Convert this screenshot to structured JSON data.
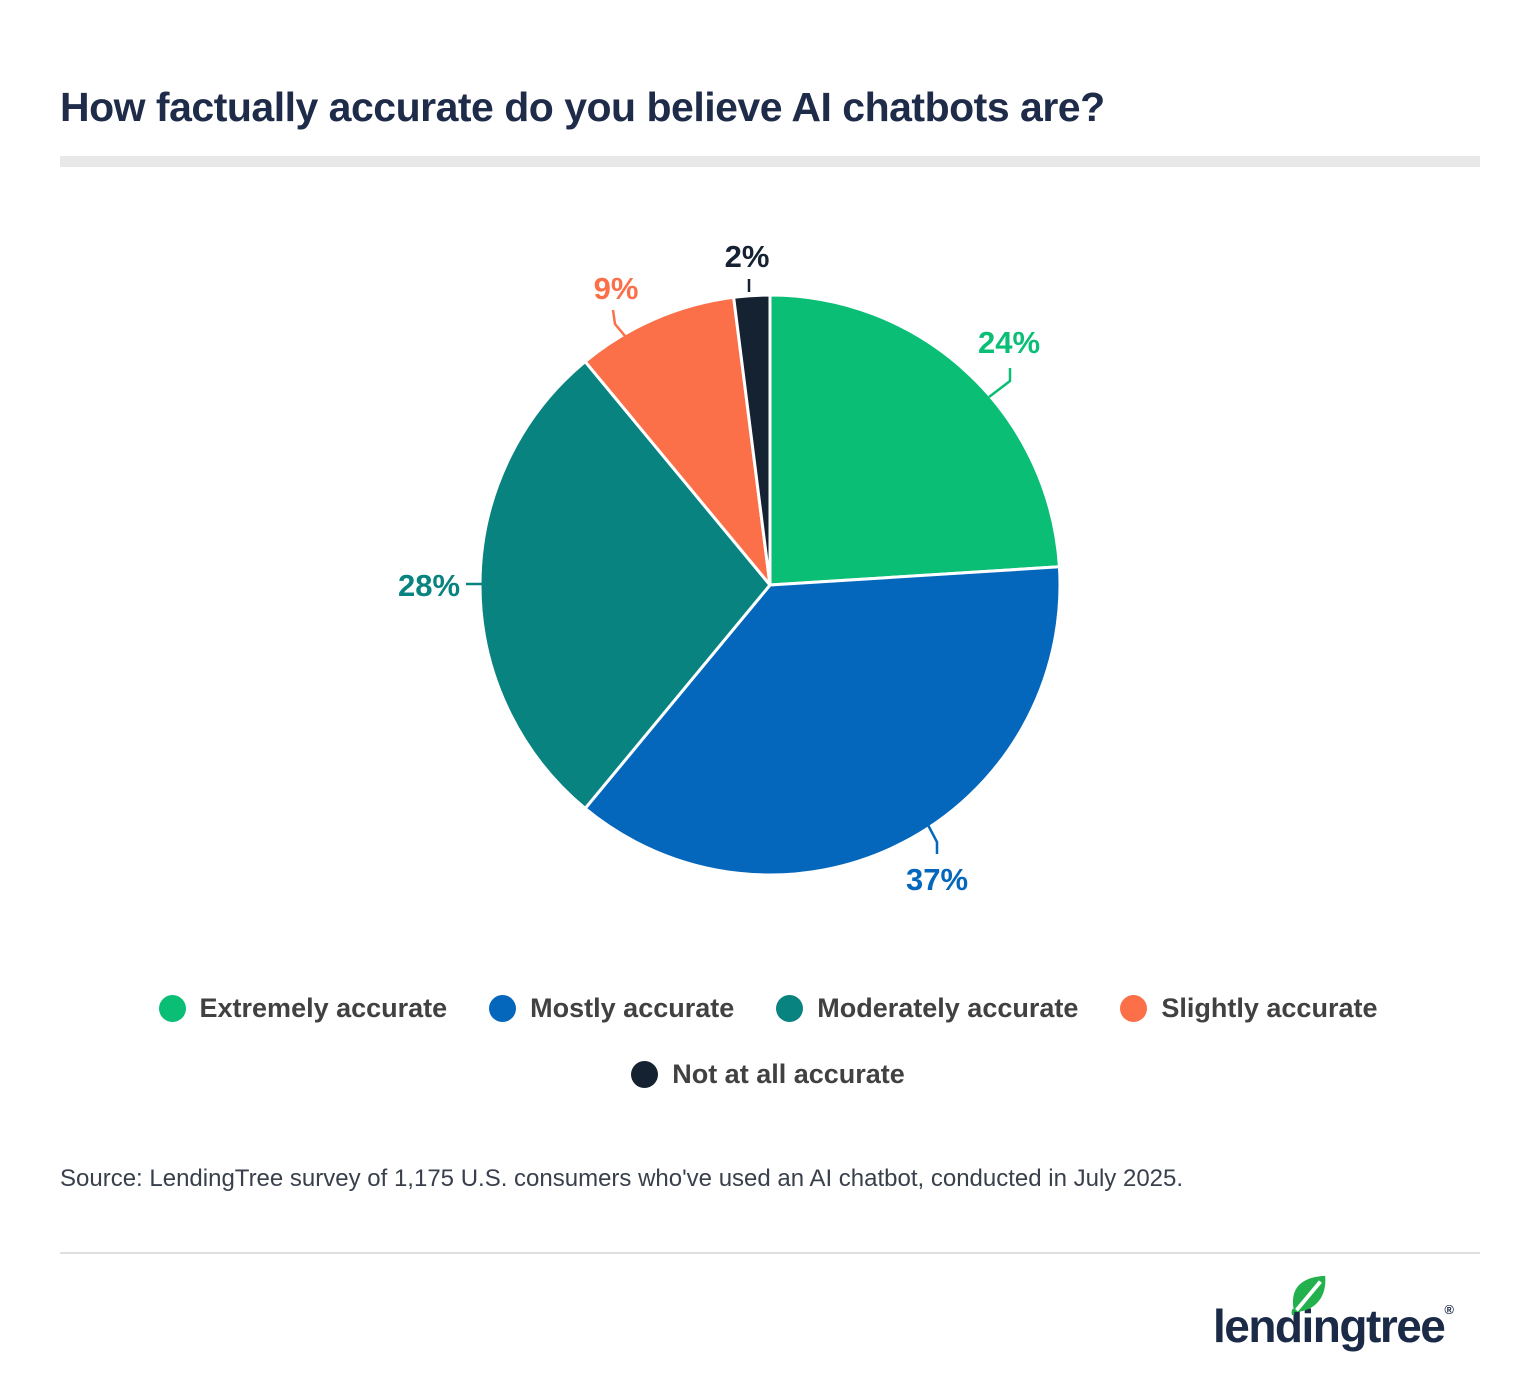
{
  "chart_data": {
    "type": "pie",
    "title": "How factually accurate do you believe AI chatbots are?",
    "categories": [
      "Extremely accurate",
      "Mostly accurate",
      "Moderately accurate",
      "Slightly accurate",
      "Not at all accurate"
    ],
    "values": [
      24,
      37,
      28,
      9,
      2
    ],
    "labels": [
      "24%",
      "37%",
      "28%",
      "9%",
      "2%"
    ],
    "unit": "%",
    "colors": [
      "#0ABE76",
      "#0467BC",
      "#088380",
      "#FB7048",
      "#152231"
    ],
    "start_angle_deg": 0,
    "direction": "clockwise",
    "legend_position": "bottom"
  },
  "brand": {
    "title_navy": "#1E2B49",
    "legend_text_gray": "#414141",
    "leaf_green": "#23B14D",
    "logo_navy": "#1B2A47"
  },
  "footer": {
    "source": "Source: LendingTree survey of 1,175 U.S. consumers who've used an AI chatbot, conducted in July 2025.",
    "logo_text": "lendingtree",
    "logo_reg": "®"
  }
}
